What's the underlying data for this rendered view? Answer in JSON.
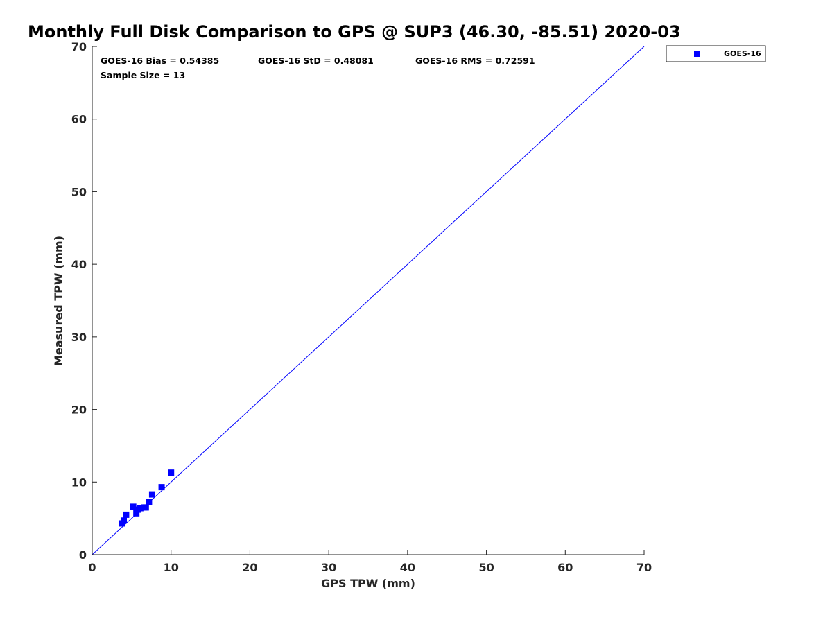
{
  "chart_data": {
    "type": "scatter",
    "title": "Monthly Full Disk Comparison to GPS @ SUP3 (46.30, -85.51) 2020-03",
    "xlabel": "GPS TPW (mm)",
    "ylabel": "Measured TPW (mm)",
    "xlim": [
      0,
      70
    ],
    "ylim": [
      0,
      70
    ],
    "xticks": [
      0,
      10,
      20,
      30,
      40,
      50,
      60,
      70
    ],
    "yticks": [
      0,
      10,
      20,
      30,
      40,
      50,
      60,
      70
    ],
    "grid": false,
    "legend_position": "outside-top-right",
    "reference_line": {
      "x": [
        0,
        70
      ],
      "y": [
        0,
        70
      ],
      "color": "#0000ff"
    },
    "series": [
      {
        "name": "GOES-16",
        "color": "#0000ff",
        "marker": "square",
        "points": [
          [
            3.8,
            4.3
          ],
          [
            4.0,
            4.7
          ],
          [
            4.3,
            5.5
          ],
          [
            5.2,
            6.6
          ],
          [
            5.6,
            5.7
          ],
          [
            5.8,
            6.2
          ],
          [
            6.1,
            6.4
          ],
          [
            6.6,
            6.5
          ],
          [
            6.8,
            6.5
          ],
          [
            7.2,
            7.3
          ],
          [
            7.6,
            8.3
          ],
          [
            8.8,
            9.3
          ],
          [
            10.0,
            11.3
          ]
        ]
      }
    ],
    "stats": {
      "bias": "GOES-16 Bias = 0.54385",
      "std": "GOES-16 StD = 0.48081",
      "rms": "GOES-16 RMS = 0.72591",
      "sample_size": "Sample Size = 13"
    }
  }
}
